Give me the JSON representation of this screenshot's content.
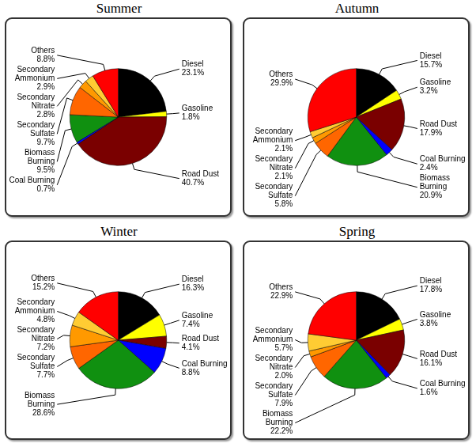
{
  "chart_data": [
    {
      "type": "pie",
      "title": "Summer",
      "categories": [
        "Diesel",
        "Gasoline",
        "Road Dust",
        "Coal Burning",
        "Biomass Burning",
        "Secondary Sulfate",
        "Secondary Nitrate",
        "Secondary Ammonium",
        "Others"
      ],
      "values": [
        23.1,
        1.8,
        40.7,
        0.7,
        9.5,
        9.7,
        2.8,
        2.9,
        8.8
      ],
      "value_labels": [
        "23.1%",
        "1.8%",
        "40.7%",
        "0.7%",
        "9.5%",
        "9.7%",
        "2.8%",
        "2.9%",
        "8.8%"
      ],
      "colors": [
        "#000000",
        "#ffff00",
        "#7a0000",
        "#0000ff",
        "#109010",
        "#ff6600",
        "#ff9900",
        "#ffcc33",
        "#ff0000"
      ],
      "data_labels": true
    },
    {
      "type": "pie",
      "title": "Autumn",
      "categories": [
        "Diesel",
        "Gasoline",
        "Road Dust",
        "Coal Burning",
        "Biomass Burning",
        "Secondary Sulfate",
        "Secondary Nitrate",
        "Secondary Ammonium",
        "Others"
      ],
      "values": [
        15.7,
        3.2,
        17.9,
        2.4,
        20.9,
        5.8,
        2.1,
        2.1,
        29.9
      ],
      "value_labels": [
        "15.7%",
        "3.2%",
        "17.9%",
        "2.4%",
        "20.9%",
        "5.8%",
        "2.1%",
        "2.1%",
        "29.9%"
      ],
      "colors": [
        "#000000",
        "#ffff00",
        "#7a0000",
        "#0000ff",
        "#109010",
        "#ff6600",
        "#ff9900",
        "#ffcc33",
        "#ff0000"
      ],
      "data_labels": true
    },
    {
      "type": "pie",
      "title": "Winter",
      "categories": [
        "Diesel",
        "Gasoline",
        "Road Dust",
        "Coal Burning",
        "Biomass Burning",
        "Secondary Sulfate",
        "Secondary Nitrate",
        "Secondary Ammonium",
        "Others"
      ],
      "values": [
        16.3,
        7.4,
        4.1,
        8.8,
        28.6,
        7.7,
        7.2,
        4.8,
        15.2
      ],
      "value_labels": [
        "16.3%",
        "7.4%",
        "4.1%",
        "8.8%",
        "28.6%",
        "7.7%",
        "7.2%",
        "4.8%",
        "15.2%"
      ],
      "colors": [
        "#000000",
        "#ffff00",
        "#7a0000",
        "#0000ff",
        "#109010",
        "#ff6600",
        "#ff9900",
        "#ffcc33",
        "#ff0000"
      ],
      "data_labels": true
    },
    {
      "type": "pie",
      "title": "Spring",
      "categories": [
        "Diesel",
        "Gasoline",
        "Road Dust",
        "Coal Burning",
        "Biomass Burning",
        "Secondary Sulfate",
        "Secondary Nitrate",
        "Secondary Ammonium",
        "Others"
      ],
      "values": [
        17.8,
        3.8,
        16.1,
        1.6,
        22.2,
        7.9,
        2.0,
        5.7,
        22.9
      ],
      "value_labels": [
        "17.8%",
        "3.8%",
        "16.1%",
        "1.6%",
        "22.2%",
        "7.9%",
        "2.0%",
        "5.7%",
        "22.9%"
      ],
      "colors": [
        "#000000",
        "#ffff00",
        "#7a0000",
        "#0000ff",
        "#109010",
        "#ff6600",
        "#ff9900",
        "#ffcc33",
        "#ff0000"
      ],
      "data_labels": true
    }
  ]
}
